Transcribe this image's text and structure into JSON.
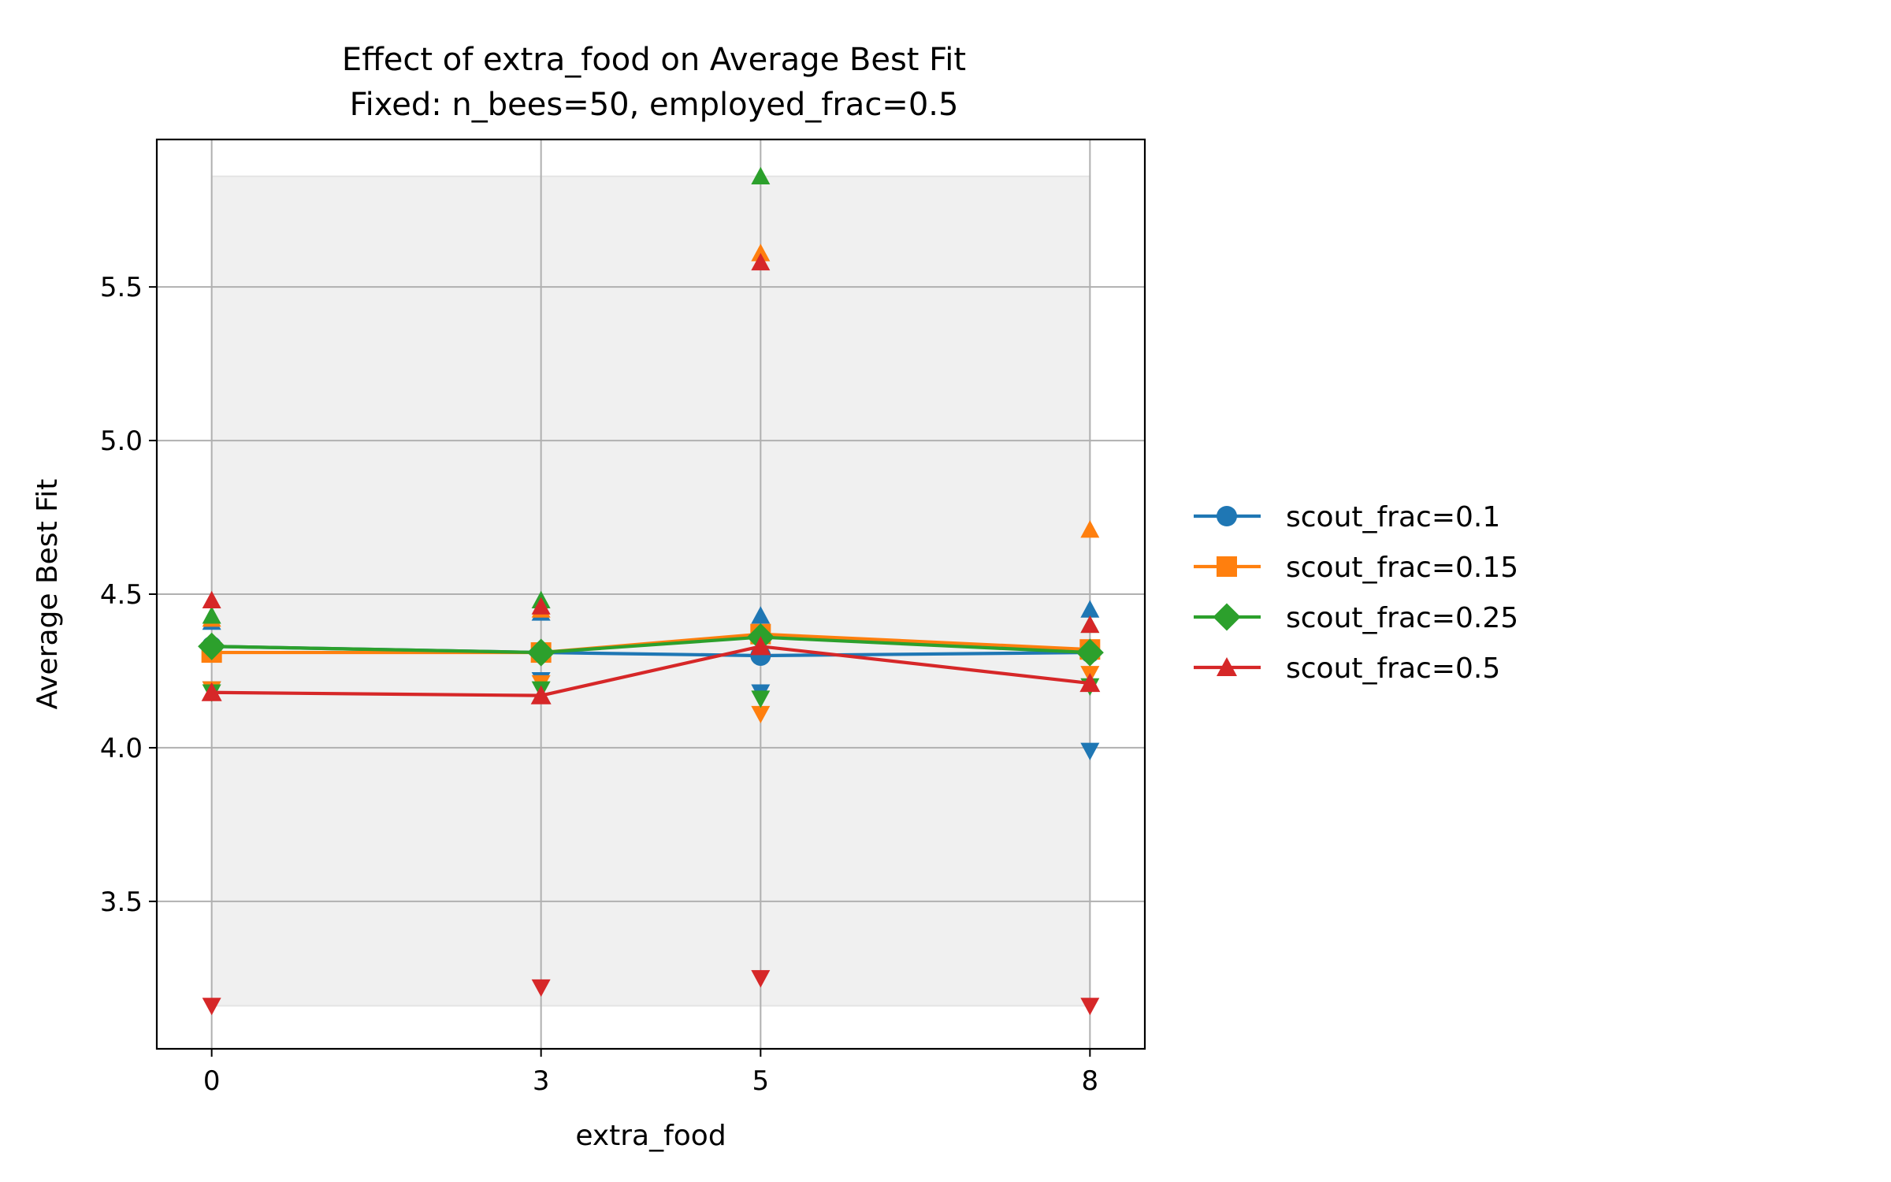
{
  "chart_data": {
    "type": "line",
    "title": "Effect of extra_food on Average Best Fit",
    "subtitle": "Fixed: n_bees=50, employed_frac=0.5",
    "xlabel": "extra_food",
    "ylabel": "Average Best Fit",
    "x": [
      0,
      3,
      5,
      8
    ],
    "x_tick_labels": [
      "0",
      "3",
      "5",
      "8"
    ],
    "xlim": [
      -0.5,
      8.5
    ],
    "ylim": [
      3.02,
      5.98
    ],
    "y_ticks": [
      3.5,
      4.0,
      4.5,
      5.0,
      5.5
    ],
    "y_tick_labels": [
      "3.5",
      "4.0",
      "4.5",
      "5.0",
      "5.5"
    ],
    "grid": true,
    "legend_position": "right",
    "shaded_band": {
      "x": [
        0,
        8
      ],
      "y": [
        3.16,
        5.86
      ],
      "color": "#f0f0f0"
    },
    "series": [
      {
        "name": "scout_frac=0.1",
        "color": "#1f77b4",
        "marker": "circle",
        "mean": [
          4.33,
          4.31,
          4.3,
          4.31
        ],
        "max": [
          4.41,
          4.44,
          4.43,
          4.45
        ],
        "min": [
          4.19,
          4.22,
          4.18,
          3.99
        ]
      },
      {
        "name": "scout_frac=0.15",
        "color": "#ff7f0e",
        "marker": "square",
        "mean": [
          4.31,
          4.31,
          4.37,
          4.32
        ],
        "max": [
          4.42,
          4.45,
          5.61,
          4.71
        ],
        "min": [
          4.19,
          4.21,
          4.11,
          4.24
        ]
      },
      {
        "name": "scout_frac=0.25",
        "color": "#2ca02c",
        "marker": "diamond",
        "mean": [
          4.33,
          4.31,
          4.36,
          4.31
        ],
        "max": [
          4.43,
          4.48,
          5.86,
          4.4
        ],
        "min": [
          4.18,
          4.19,
          4.16,
          4.2
        ]
      },
      {
        "name": "scout_frac=0.5",
        "color": "#d62728",
        "marker": "triangle",
        "mean": [
          4.18,
          4.17,
          4.33,
          4.21
        ],
        "max": [
          4.48,
          4.46,
          5.58,
          4.4
        ],
        "min": [
          3.16,
          3.22,
          3.25,
          3.16
        ]
      }
    ]
  }
}
